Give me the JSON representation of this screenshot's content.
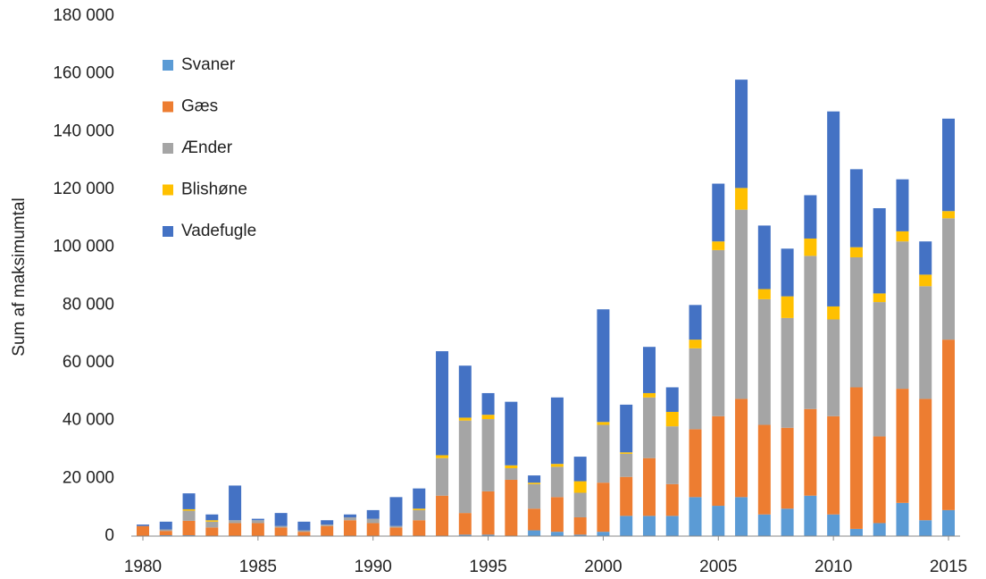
{
  "chart_data": {
    "type": "stacked_bar",
    "y_label": "Sum af maksimumtal",
    "x": [
      1980,
      1981,
      1982,
      1983,
      1984,
      1985,
      1986,
      1987,
      1988,
      1989,
      1990,
      1991,
      1992,
      1993,
      1994,
      1995,
      1996,
      1997,
      1998,
      1999,
      2000,
      2001,
      2002,
      2003,
      2004,
      2005,
      2006,
      2007,
      2008,
      2009,
      2010,
      2011,
      2012,
      2013,
      2014,
      2015
    ],
    "xlim": [
      1980,
      2015
    ],
    "xticks": [
      1980,
      1985,
      1990,
      1995,
      2000,
      2005,
      2010,
      2015
    ],
    "ylim": [
      0,
      180000
    ],
    "yticks": [
      0,
      {
        "value": 20000,
        "label": "20 000"
      },
      {
        "value": 40000,
        "label": "40 000"
      },
      {
        "value": 60000,
        "label": "60 000"
      },
      {
        "value": 80000,
        "label": "80 000"
      },
      {
        "value": 100000,
        "label": "100 000"
      },
      {
        "value": 120000,
        "label": "120 000"
      },
      {
        "value": 140000,
        "label": "140 000"
      },
      {
        "value": 160000,
        "label": "160 000"
      },
      {
        "value": 180000,
        "label": "180 000"
      }
    ],
    "grid": false,
    "legend": "upper left",
    "series": [
      {
        "name": "Svaner",
        "color": "#5b9bd5",
        "values": [
          0,
          300,
          300,
          0,
          0,
          0,
          0,
          0,
          0,
          0,
          0,
          0,
          0,
          0,
          500,
          500,
          0,
          2000,
          1500,
          500,
          1500,
          7000,
          7000,
          7000,
          13500,
          10500,
          13500,
          7500,
          9500,
          14000,
          7500,
          2500,
          4500,
          11500,
          5500,
          9000
        ]
      },
      {
        "name": "Gæs",
        "color": "#ed7d31",
        "values": [
          3500,
          1500,
          5000,
          3000,
          4500,
          4500,
          3000,
          1500,
          3500,
          5500,
          4500,
          3000,
          5500,
          14000,
          7500,
          15000,
          19500,
          7500,
          12000,
          6000,
          17000,
          13500,
          20000,
          11000,
          23500,
          31000,
          34000,
          31000,
          28000,
          30000,
          34000,
          49000,
          30000,
          39500,
          42000,
          59000
        ]
      },
      {
        "name": "Ænder",
        "color": "#a5a5a5",
        "values": [
          0,
          500,
          3500,
          2000,
          1000,
          1000,
          500,
          500,
          500,
          1000,
          1500,
          500,
          3500,
          13000,
          32000,
          25000,
          4000,
          8500,
          10500,
          8500,
          20000,
          8000,
          21000,
          20000,
          28000,
          57500,
          65500,
          43500,
          38000,
          53000,
          33500,
          45000,
          46500,
          51000,
          39000,
          42000
        ]
      },
      {
        "name": "Blishøne",
        "color": "#ffc000",
        "values": [
          0,
          0,
          500,
          500,
          0,
          0,
          0,
          0,
          0,
          0,
          0,
          0,
          500,
          1000,
          1000,
          1500,
          1000,
          500,
          1000,
          4000,
          1000,
          500,
          1500,
          5000,
          3000,
          3000,
          7500,
          3500,
          7500,
          6000,
          4500,
          3500,
          3000,
          3500,
          4000,
          2500
        ]
      },
      {
        "name": "Vadefugle",
        "color": "#4472c4",
        "values": [
          500,
          2700,
          5500,
          2000,
          12000,
          500,
          4500,
          3000,
          1500,
          1000,
          3000,
          10000,
          7000,
          36000,
          18000,
          7500,
          22000,
          2500,
          23000,
          8500,
          39000,
          16500,
          16000,
          8500,
          12000,
          20000,
          37500,
          22000,
          16500,
          15000,
          67500,
          27000,
          29500,
          18000,
          11500,
          32000
        ]
      }
    ]
  }
}
